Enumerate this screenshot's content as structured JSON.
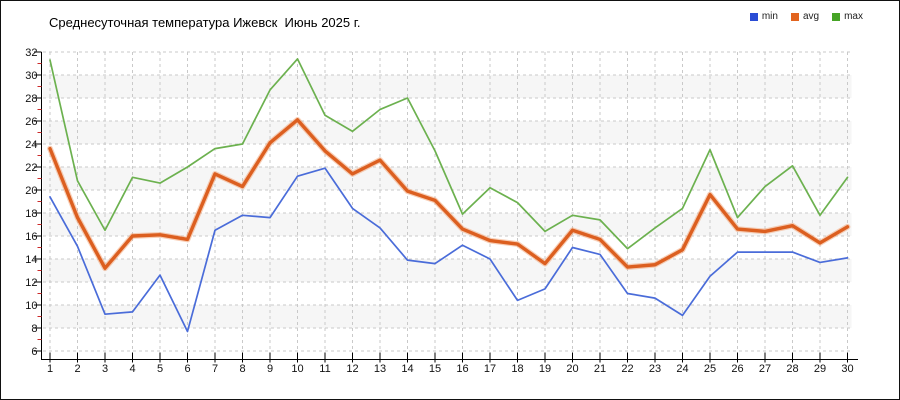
{
  "title": "Среднесуточная температура Ижевск  Июнь 2025 г.",
  "legend": {
    "items": [
      {
        "label": "min",
        "color": "#2a4cd5"
      },
      {
        "label": "avg",
        "color": "#e2641f"
      },
      {
        "label": "max",
        "color": "#46a426"
      }
    ]
  },
  "chart_data": {
    "type": "line",
    "title": "Среднесуточная температура Ижевск  Июнь 2025 г.",
    "xlabel": "",
    "ylabel": "",
    "x": [
      1,
      2,
      3,
      4,
      5,
      6,
      7,
      8,
      9,
      10,
      11,
      12,
      13,
      14,
      15,
      16,
      17,
      18,
      19,
      20,
      21,
      22,
      23,
      24,
      25,
      26,
      27,
      28,
      29,
      30
    ],
    "series": [
      {
        "name": "max",
        "color": "#6cb14f",
        "width": 1.7,
        "values": [
          31.3,
          20.8,
          16.5,
          21.1,
          20.6,
          22.0,
          23.6,
          24.0,
          28.7,
          31.4,
          26.5,
          25.1,
          27.0,
          28.0,
          23.4,
          17.9,
          20.2,
          18.9,
          16.4,
          17.8,
          17.4,
          14.9,
          16.7,
          18.4,
          23.5,
          17.6,
          20.3,
          22.1,
          17.8,
          21.1
        ]
      },
      {
        "name": "min",
        "color": "#4a6cd9",
        "width": 1.7,
        "values": [
          19.4,
          15.1,
          9.2,
          9.4,
          12.6,
          7.7,
          16.5,
          17.8,
          17.6,
          21.2,
          21.9,
          18.4,
          16.7,
          13.9,
          13.6,
          15.2,
          14.0,
          10.4,
          11.4,
          15.0,
          14.4,
          11.0,
          10.6,
          9.1,
          12.5,
          14.6,
          14.6,
          14.6,
          13.7,
          14.1
        ]
      },
      {
        "name": "avg",
        "color": "#dc5f20",
        "width": 3.4,
        "halo": "#f3a87c",
        "values": [
          23.6,
          17.6,
          13.2,
          16.0,
          16.1,
          15.7,
          21.4,
          20.3,
          24.1,
          26.1,
          23.4,
          21.4,
          22.6,
          19.9,
          19.1,
          16.6,
          15.6,
          15.3,
          13.6,
          16.5,
          15.7,
          13.3,
          13.5,
          14.8,
          19.6,
          16.6,
          16.4,
          16.9,
          15.4,
          16.8
        ]
      }
    ],
    "ylim": [
      6,
      32
    ],
    "ytick_step": 2,
    "yminor_step": 1,
    "grid": true,
    "legend_position": "top-right",
    "band_colors": [
      "#ffffff",
      "#f6f6f6"
    ],
    "grid_color": "#c9c9c9",
    "axis_color": "#000000",
    "minor_tick_color": "#cc2a2a",
    "tick_label_color": "#111111"
  }
}
